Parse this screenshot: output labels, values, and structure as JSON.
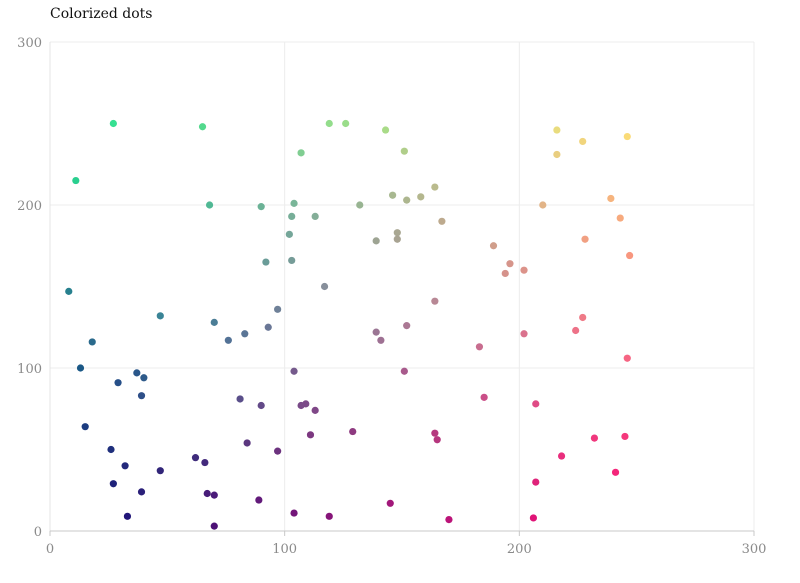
{
  "title": "Colorized dots",
  "chart_data": {
    "type": "scatter",
    "title": "Colorized dots",
    "xlabel": "",
    "ylabel": "",
    "xlim": [
      0,
      300
    ],
    "ylim": [
      0,
      300
    ],
    "x_ticks": [
      0,
      100,
      200,
      300
    ],
    "y_ticks": [
      0,
      100,
      200,
      300
    ],
    "grid": true,
    "color_encoding": "dot color varies with x (purple to orange/yellow) and y (dark blue to green)",
    "points": [
      {
        "x": 8,
        "y": 147,
        "color": "#27808e"
      },
      {
        "x": 11,
        "y": 215,
        "color": "#29cf8f"
      },
      {
        "x": 13,
        "y": 100,
        "color": "#1a5886"
      },
      {
        "x": 15,
        "y": 64,
        "color": "#1c3c80"
      },
      {
        "x": 18,
        "y": 116,
        "color": "#2a6a8c"
      },
      {
        "x": 26,
        "y": 50,
        "color": "#1f2f7c"
      },
      {
        "x": 27,
        "y": 29,
        "color": "#1e227a"
      },
      {
        "x": 27,
        "y": 250,
        "color": "#36e092"
      },
      {
        "x": 29,
        "y": 91,
        "color": "#264f88"
      },
      {
        "x": 32,
        "y": 40,
        "color": "#23297b"
      },
      {
        "x": 33,
        "y": 9,
        "color": "#211679"
      },
      {
        "x": 37,
        "y": 97,
        "color": "#2a578a"
      },
      {
        "x": 39,
        "y": 24,
        "color": "#2a1f79"
      },
      {
        "x": 39,
        "y": 83,
        "color": "#2e4f88"
      },
      {
        "x": 40,
        "y": 94,
        "color": "#2e5a8a"
      },
      {
        "x": 47,
        "y": 132,
        "color": "#3a8496"
      },
      {
        "x": 47,
        "y": 37,
        "color": "#312579"
      },
      {
        "x": 62,
        "y": 45,
        "color": "#3f2c7c"
      },
      {
        "x": 65,
        "y": 248,
        "color": "#53d98d"
      },
      {
        "x": 66,
        "y": 42,
        "color": "#432a7c"
      },
      {
        "x": 67,
        "y": 23,
        "color": "#481c79"
      },
      {
        "x": 68,
        "y": 200,
        "color": "#50b894"
      },
      {
        "x": 70,
        "y": 22,
        "color": "#4b1b79"
      },
      {
        "x": 70,
        "y": 128,
        "color": "#4b7d96"
      },
      {
        "x": 70,
        "y": 3,
        "color": "#4d1276"
      },
      {
        "x": 76,
        "y": 117,
        "color": "#537296"
      },
      {
        "x": 81,
        "y": 81,
        "color": "#5a4f8a"
      },
      {
        "x": 83,
        "y": 121,
        "color": "#5a7596"
      },
      {
        "x": 84,
        "y": 54,
        "color": "#5b377f"
      },
      {
        "x": 89,
        "y": 19,
        "color": "#621a7a"
      },
      {
        "x": 90,
        "y": 77,
        "color": "#634a88"
      },
      {
        "x": 90,
        "y": 199,
        "color": "#6bb296"
      },
      {
        "x": 92,
        "y": 165,
        "color": "#6a9c98"
      },
      {
        "x": 93,
        "y": 125,
        "color": "#6a7796"
      },
      {
        "x": 97,
        "y": 136,
        "color": "#6f8198"
      },
      {
        "x": 97,
        "y": 49,
        "color": "#6c327e"
      },
      {
        "x": 102,
        "y": 182,
        "color": "#75a699"
      },
      {
        "x": 103,
        "y": 193,
        "color": "#77ae98"
      },
      {
        "x": 103,
        "y": 166,
        "color": "#769c98"
      },
      {
        "x": 104,
        "y": 201,
        "color": "#79b598"
      },
      {
        "x": 104,
        "y": 98,
        "color": "#755a8c"
      },
      {
        "x": 104,
        "y": 11,
        "color": "#731579"
      },
      {
        "x": 107,
        "y": 232,
        "color": "#80ce92"
      },
      {
        "x": 107,
        "y": 77,
        "color": "#794a88"
      },
      {
        "x": 109,
        "y": 78,
        "color": "#7b4a88"
      },
      {
        "x": 111,
        "y": 59,
        "color": "#7c3880"
      },
      {
        "x": 113,
        "y": 193,
        "color": "#84ae98"
      },
      {
        "x": 113,
        "y": 74,
        "color": "#7f4787"
      },
      {
        "x": 117,
        "y": 150,
        "color": "#878f9b"
      },
      {
        "x": 119,
        "y": 250,
        "color": "#93dd8c"
      },
      {
        "x": 119,
        "y": 9,
        "color": "#861479"
      },
      {
        "x": 126,
        "y": 250,
        "color": "#9add8a"
      },
      {
        "x": 129,
        "y": 61,
        "color": "#8e3a80"
      },
      {
        "x": 132,
        "y": 200,
        "color": "#98b492"
      },
      {
        "x": 139,
        "y": 122,
        "color": "#9b7694"
      },
      {
        "x": 139,
        "y": 178,
        "color": "#9ea493"
      },
      {
        "x": 141,
        "y": 117,
        "color": "#9e7193"
      },
      {
        "x": 143,
        "y": 246,
        "color": "#a9db88"
      },
      {
        "x": 145,
        "y": 17,
        "color": "#a2187a"
      },
      {
        "x": 146,
        "y": 206,
        "color": "#a8b890"
      },
      {
        "x": 148,
        "y": 183,
        "color": "#a9a792"
      },
      {
        "x": 148,
        "y": 179,
        "color": "#a8a392"
      },
      {
        "x": 151,
        "y": 98,
        "color": "#a85a8c"
      },
      {
        "x": 151,
        "y": 233,
        "color": "#b0ce8a"
      },
      {
        "x": 152,
        "y": 203,
        "color": "#adb68f"
      },
      {
        "x": 152,
        "y": 126,
        "color": "#ab7894"
      },
      {
        "x": 158,
        "y": 205,
        "color": "#b4b78e"
      },
      {
        "x": 164,
        "y": 211,
        "color": "#babb8d"
      },
      {
        "x": 164,
        "y": 141,
        "color": "#b88895"
      },
      {
        "x": 164,
        "y": 60,
        "color": "#b5397f"
      },
      {
        "x": 165,
        "y": 56,
        "color": "#b6367e"
      },
      {
        "x": 167,
        "y": 190,
        "color": "#bdaa8e"
      },
      {
        "x": 170,
        "y": 7,
        "color": "#bb1378"
      },
      {
        "x": 183,
        "y": 113,
        "color": "#c86d8f"
      },
      {
        "x": 185,
        "y": 82,
        "color": "#ca4f88"
      },
      {
        "x": 189,
        "y": 175,
        "color": "#d09e8b"
      },
      {
        "x": 194,
        "y": 158,
        "color": "#d5928b"
      },
      {
        "x": 196,
        "y": 164,
        "color": "#d6958b"
      },
      {
        "x": 202,
        "y": 160,
        "color": "#dc938a"
      },
      {
        "x": 202,
        "y": 121,
        "color": "#da728d"
      },
      {
        "x": 206,
        "y": 8,
        "color": "#e01377"
      },
      {
        "x": 207,
        "y": 78,
        "color": "#df4b85"
      },
      {
        "x": 207,
        "y": 30,
        "color": "#df237a"
      },
      {
        "x": 210,
        "y": 200,
        "color": "#e2b487"
      },
      {
        "x": 216,
        "y": 246,
        "color": "#e9dc7e"
      },
      {
        "x": 216,
        "y": 231,
        "color": "#e9ce80"
      },
      {
        "x": 218,
        "y": 46,
        "color": "#e92e7d"
      },
      {
        "x": 224,
        "y": 123,
        "color": "#ed7288"
      },
      {
        "x": 227,
        "y": 239,
        "color": "#f1d57d"
      },
      {
        "x": 227,
        "y": 131,
        "color": "#ef7a87"
      },
      {
        "x": 228,
        "y": 179,
        "color": "#f1a082"
      },
      {
        "x": 232,
        "y": 57,
        "color": "#f0377d"
      },
      {
        "x": 239,
        "y": 204,
        "color": "#f6b47e"
      },
      {
        "x": 241,
        "y": 36,
        "color": "#f4267a"
      },
      {
        "x": 243,
        "y": 192,
        "color": "#f7aa7e"
      },
      {
        "x": 245,
        "y": 58,
        "color": "#f5387c"
      },
      {
        "x": 246,
        "y": 242,
        "color": "#fadb78"
      },
      {
        "x": 246,
        "y": 106,
        "color": "#f66583"
      },
      {
        "x": 247,
        "y": 169,
        "color": "#f8977f"
      }
    ]
  }
}
